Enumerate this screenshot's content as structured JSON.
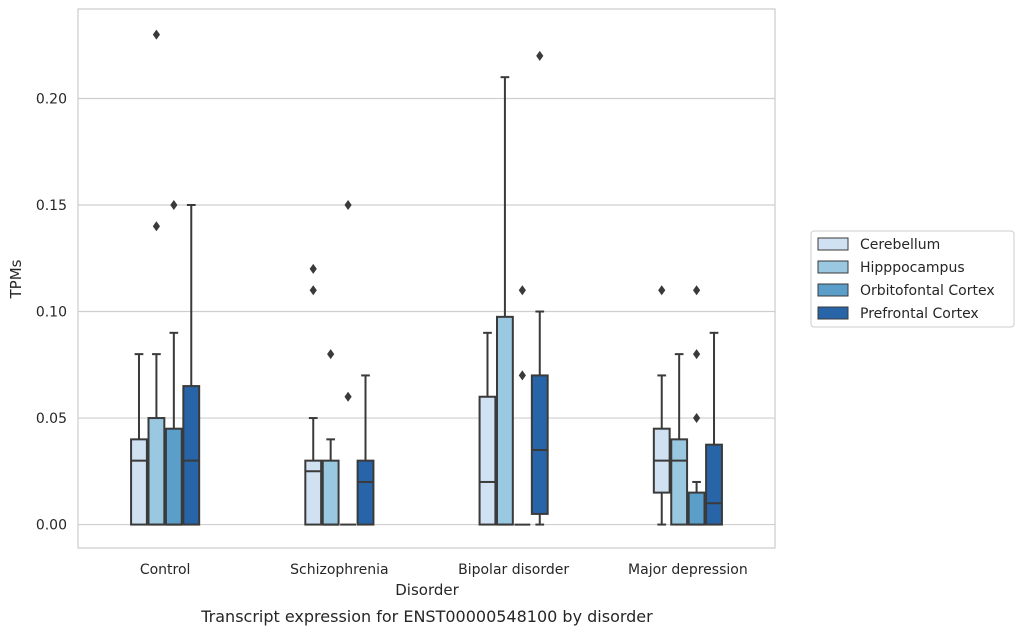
{
  "chart_data": {
    "type": "box",
    "caption": "Transcript expression for ENST00000548100 by disorder",
    "xlabel": "Disorder",
    "ylabel": "TPMs",
    "ylim": [
      -0.011,
      0.242
    ],
    "yticks": [
      "0.00",
      "0.05",
      "0.10",
      "0.15",
      "0.20"
    ],
    "ytick_values": [
      0.0,
      0.05,
      0.1,
      0.15,
      0.2
    ],
    "grid": true,
    "legend_position": "right",
    "categories": [
      "Control",
      "Schizophrenia",
      "Bipolar disorder",
      "Major depression"
    ],
    "series": [
      {
        "name": "Cerebellum",
        "color": "#d0e1f2",
        "boxes": [
          {
            "whislo": 0.0,
            "q1": 0.0,
            "med": 0.03,
            "q3": 0.04,
            "whishi": 0.08,
            "fliers": []
          },
          {
            "whislo": 0.0,
            "q1": 0.0,
            "med": 0.025,
            "q3": 0.03,
            "whishi": 0.05,
            "fliers": [
              0.11,
              0.12
            ]
          },
          {
            "whislo": 0.0,
            "q1": 0.0,
            "med": 0.02,
            "q3": 0.06,
            "whishi": 0.09,
            "fliers": []
          },
          {
            "whislo": 0.0,
            "q1": 0.015,
            "med": 0.03,
            "q3": 0.045,
            "whishi": 0.07,
            "fliers": [
              0.11
            ]
          }
        ]
      },
      {
        "name": "Hipppocampus",
        "color": "#9ac8e0",
        "boxes": [
          {
            "whislo": 0.0,
            "q1": 0.0,
            "med": 0.0,
            "q3": 0.05,
            "whishi": 0.08,
            "fliers": [
              0.14,
              0.23
            ]
          },
          {
            "whislo": 0.0,
            "q1": 0.0,
            "med": 0.0,
            "q3": 0.03,
            "whishi": 0.04,
            "fliers": [
              0.08
            ]
          },
          {
            "whislo": 0.0,
            "q1": 0.0,
            "med": 0.0,
            "q3": 0.0975,
            "whishi": 0.21,
            "fliers": []
          },
          {
            "whislo": 0.0,
            "q1": 0.0,
            "med": 0.03,
            "q3": 0.04,
            "whishi": 0.08,
            "fliers": []
          }
        ]
      },
      {
        "name": "Orbitofontal Cortex",
        "color": "#5a9ec9",
        "boxes": [
          {
            "whislo": 0.0,
            "q1": 0.0,
            "med": 0.0,
            "q3": 0.045,
            "whishi": 0.09,
            "fliers": [
              0.15
            ]
          },
          {
            "whislo": 0.0,
            "q1": 0.0,
            "med": 0.0,
            "q3": 0.0,
            "whishi": 0.0,
            "fliers": [
              0.06,
              0.15
            ]
          },
          {
            "whislo": 0.0,
            "q1": 0.0,
            "med": 0.0,
            "q3": 0.0,
            "whishi": 0.0,
            "fliers": [
              0.07,
              0.11
            ]
          },
          {
            "whislo": 0.0,
            "q1": 0.0,
            "med": 0.0,
            "q3": 0.015,
            "whishi": 0.02,
            "fliers": [
              0.05,
              0.08,
              0.11
            ]
          }
        ]
      },
      {
        "name": "Prefrontal Cortex",
        "color": "#2865a8",
        "boxes": [
          {
            "whislo": 0.0,
            "q1": 0.0,
            "med": 0.03,
            "q3": 0.065,
            "whishi": 0.15,
            "fliers": []
          },
          {
            "whislo": 0.0,
            "q1": 0.0,
            "med": 0.02,
            "q3": 0.03,
            "whishi": 0.07,
            "fliers": []
          },
          {
            "whislo": 0.0,
            "q1": 0.005,
            "med": 0.035,
            "q3": 0.07,
            "whishi": 0.1,
            "fliers": [
              0.22
            ]
          },
          {
            "whislo": 0.0,
            "q1": 0.0,
            "med": 0.01,
            "q3": 0.0375,
            "whishi": 0.09,
            "fliers": []
          }
        ]
      }
    ]
  },
  "style": {
    "edge_color": "#3a3a3a",
    "grid_color": "#cfcfcf",
    "frame_color": "#cccccc"
  }
}
